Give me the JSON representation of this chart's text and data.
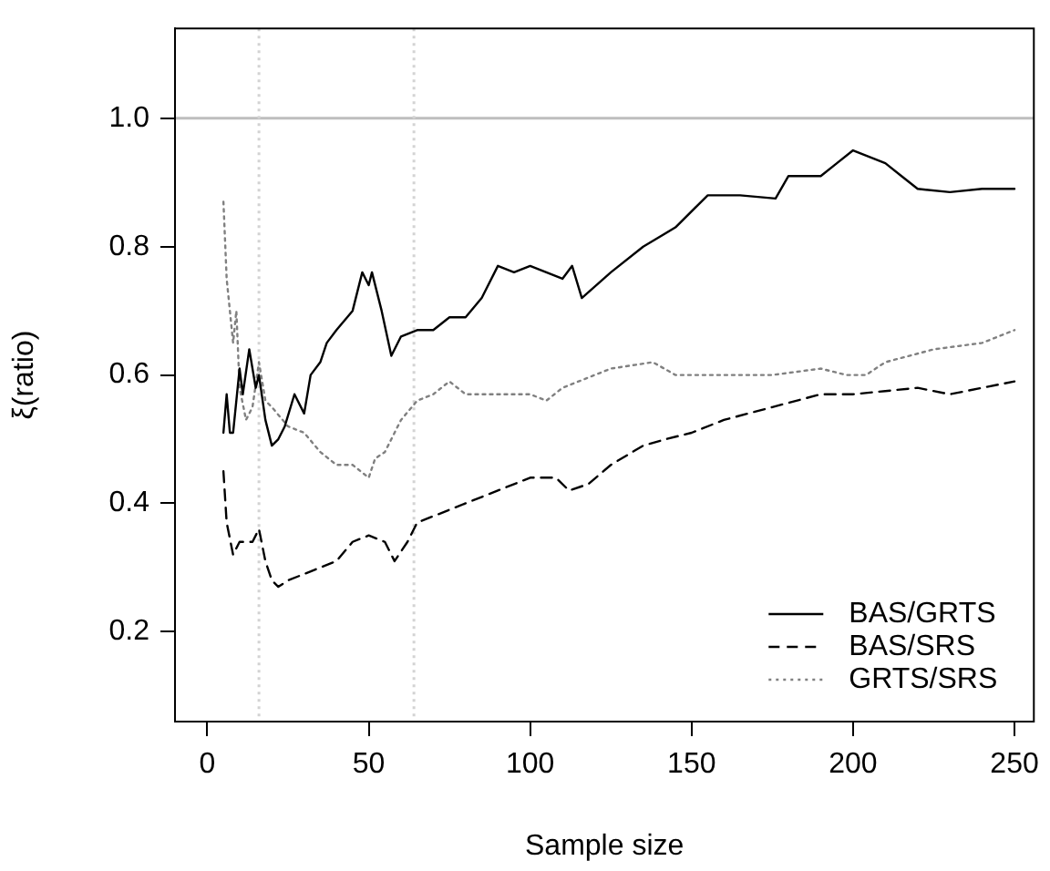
{
  "chart_data": {
    "type": "line",
    "xlabel": "Sample size",
    "ylabel": "ξ(ratio)",
    "xlim": [
      -10,
      256
    ],
    "ylim": [
      0.06,
      1.14
    ],
    "xticks": [
      0,
      50,
      100,
      150,
      200,
      250
    ],
    "yticks": [
      0.2,
      0.4,
      0.6,
      0.8,
      {
        "value": 1,
        "label": "1.0"
      }
    ],
    "grid": false,
    "legend": "bottom right",
    "marker": "none",
    "ref_lines": [
      {
        "axis": "y",
        "value": 1.0,
        "color": "#bebebe",
        "line_style": "solid"
      },
      {
        "axis": "x",
        "value": 16,
        "color": "#d3d3d3",
        "line_style": "dotted"
      },
      {
        "axis": "x",
        "value": 64,
        "color": "#d3d3d3",
        "line_style": "dotted"
      }
    ],
    "series": [
      {
        "name": "BAS/GRTS",
        "color": "#000000",
        "line_style": "solid",
        "x": [
          5,
          6,
          7,
          8,
          10,
          11,
          13,
          15,
          16,
          18,
          20,
          22,
          24,
          27,
          28,
          30,
          32,
          35,
          37,
          40,
          45,
          48,
          50,
          51,
          54,
          57,
          60,
          65,
          70,
          75,
          80,
          85,
          90,
          95,
          100,
          105,
          110,
          113,
          116,
          125,
          135,
          145,
          155,
          165,
          176,
          180,
          190,
          195,
          200,
          205,
          210,
          215,
          220,
          230,
          240,
          250
        ],
        "values": [
          0.51,
          0.57,
          0.51,
          0.51,
          0.61,
          0.57,
          0.64,
          0.58,
          0.6,
          0.53,
          0.49,
          0.5,
          0.52,
          0.57,
          0.56,
          0.54,
          0.6,
          0.62,
          0.65,
          0.67,
          0.7,
          0.76,
          0.74,
          0.76,
          0.7,
          0.63,
          0.66,
          0.67,
          0.67,
          0.69,
          0.69,
          0.72,
          0.77,
          0.76,
          0.77,
          0.76,
          0.75,
          0.77,
          0.72,
          0.76,
          0.8,
          0.83,
          0.88,
          0.88,
          0.875,
          0.91,
          0.91,
          0.93,
          0.95,
          0.94,
          0.93,
          0.91,
          0.89,
          0.885,
          0.89,
          0.89
        ]
      },
      {
        "name": "BAS/SRS",
        "color": "#000000",
        "line_style": "dashed",
        "x": [
          5,
          6,
          8,
          10,
          14,
          16,
          18,
          20,
          22,
          25,
          30,
          35,
          40,
          45,
          50,
          55,
          58,
          62,
          65,
          70,
          80,
          90,
          100,
          108,
          112,
          118,
          125,
          135,
          142,
          150,
          160,
          175,
          190,
          200,
          210,
          220,
          230,
          240,
          250
        ],
        "values": [
          0.45,
          0.37,
          0.32,
          0.34,
          0.34,
          0.36,
          0.31,
          0.28,
          0.27,
          0.28,
          0.29,
          0.3,
          0.31,
          0.34,
          0.35,
          0.34,
          0.31,
          0.34,
          0.37,
          0.38,
          0.4,
          0.42,
          0.44,
          0.44,
          0.42,
          0.43,
          0.46,
          0.49,
          0.5,
          0.51,
          0.53,
          0.55,
          0.57,
          0.57,
          0.575,
          0.58,
          0.57,
          0.58,
          0.59
        ]
      },
      {
        "name": "GRTS/SRS",
        "color": "#808080",
        "line_style": "dotted",
        "x": [
          5,
          6,
          8,
          9,
          10,
          12,
          14,
          16,
          18,
          20,
          25,
          30,
          35,
          40,
          45,
          50,
          52,
          55,
          60,
          65,
          70,
          75,
          80,
          90,
          100,
          105,
          110,
          115,
          120,
          125,
          138,
          145,
          160,
          175,
          190,
          198,
          204,
          210,
          225,
          240,
          250
        ],
        "values": [
          0.87,
          0.75,
          0.65,
          0.7,
          0.58,
          0.53,
          0.55,
          0.62,
          0.56,
          0.55,
          0.52,
          0.51,
          0.48,
          0.46,
          0.46,
          0.44,
          0.47,
          0.48,
          0.53,
          0.56,
          0.57,
          0.59,
          0.57,
          0.57,
          0.57,
          0.56,
          0.58,
          0.59,
          0.6,
          0.61,
          0.62,
          0.6,
          0.6,
          0.6,
          0.61,
          0.6,
          0.6,
          0.62,
          0.64,
          0.65,
          0.67
        ]
      }
    ]
  }
}
